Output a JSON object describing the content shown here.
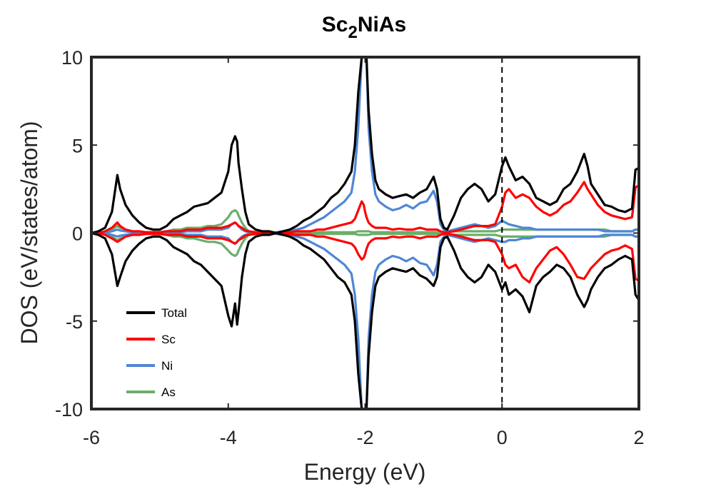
{
  "chart_data": {
    "type": "line",
    "title_main": "Sc",
    "title_sub": "2",
    "title_rest": "NiAs",
    "xlabel": "Energy (eV)",
    "ylabel": "DOS (eV/states/atom)",
    "xlim": [
      -6,
      2
    ],
    "ylim": [
      -10,
      10
    ],
    "xticks": [
      -6,
      -4,
      -2,
      0,
      2
    ],
    "xtick_labels": [
      "-6",
      "-4",
      "-2",
      "0",
      "2"
    ],
    "yticks": [
      -10,
      -5,
      0,
      5,
      10
    ],
    "ytick_labels": [
      "-10",
      "-5",
      "0",
      "5",
      "10"
    ],
    "fermi_level": 0,
    "legend_position": "lower-left",
    "grid": false,
    "x": [
      -6.0,
      -5.9,
      -5.8,
      -5.7,
      -5.62,
      -5.58,
      -5.5,
      -5.4,
      -5.3,
      -5.2,
      -5.1,
      -5.0,
      -4.9,
      -4.8,
      -4.7,
      -4.6,
      -4.5,
      -4.4,
      -4.3,
      -4.2,
      -4.1,
      -4.0,
      -3.95,
      -3.9,
      -3.87,
      -3.85,
      -3.8,
      -3.75,
      -3.7,
      -3.6,
      -3.5,
      -3.4,
      -3.3,
      -3.2,
      -3.1,
      -3.0,
      -2.9,
      -2.8,
      -2.7,
      -2.6,
      -2.5,
      -2.4,
      -2.3,
      -2.2,
      -2.15,
      -2.1,
      -2.05,
      -2.02,
      -2.0,
      -1.98,
      -1.95,
      -1.9,
      -1.85,
      -1.8,
      -1.7,
      -1.6,
      -1.5,
      -1.4,
      -1.3,
      -1.2,
      -1.1,
      -1.0,
      -0.95,
      -0.9,
      -0.85,
      -0.8,
      -0.7,
      -0.6,
      -0.5,
      -0.4,
      -0.3,
      -0.2,
      -0.1,
      0.0,
      0.05,
      0.1,
      0.2,
      0.3,
      0.4,
      0.5,
      0.6,
      0.7,
      0.8,
      0.9,
      1.0,
      1.1,
      1.2,
      1.25,
      1.3,
      1.4,
      1.5,
      1.6,
      1.7,
      1.8,
      1.9,
      1.95,
      2.0
    ],
    "series": [
      {
        "name": "Total",
        "color": "#000000",
        "up": [
          0.0,
          0.1,
          0.3,
          1.2,
          3.3,
          2.5,
          1.6,
          1.0,
          0.6,
          0.3,
          0.2,
          0.2,
          0.4,
          0.8,
          1.0,
          1.2,
          1.5,
          1.6,
          1.7,
          2.0,
          2.3,
          3.5,
          5.0,
          5.5,
          5.2,
          4.0,
          2.5,
          1.2,
          0.5,
          0.2,
          0.1,
          0.1,
          0.0,
          0.1,
          0.2,
          0.4,
          0.7,
          0.9,
          1.2,
          1.5,
          2.0,
          2.3,
          2.8,
          3.5,
          5.0,
          8.0,
          10.0,
          10.0,
          10.0,
          10.0,
          7.0,
          4.5,
          3.0,
          2.5,
          2.2,
          2.0,
          2.1,
          2.2,
          2.0,
          2.3,
          2.5,
          3.2,
          2.5,
          0.8,
          0.3,
          0.2,
          1.0,
          2.0,
          2.5,
          2.8,
          2.5,
          1.8,
          2.2,
          3.8,
          4.3,
          3.8,
          3.0,
          3.2,
          2.8,
          2.0,
          1.8,
          1.6,
          1.8,
          2.5,
          2.8,
          3.5,
          4.5,
          3.8,
          2.8,
          2.2,
          1.6,
          1.5,
          1.3,
          1.2,
          1.4,
          3.6,
          3.7
        ],
        "down": [
          0.0,
          -0.1,
          -0.3,
          -1.2,
          -3.0,
          -2.5,
          -1.6,
          -1.0,
          -0.6,
          -0.3,
          -0.2,
          -0.2,
          -0.4,
          -0.8,
          -1.0,
          -1.2,
          -1.6,
          -1.8,
          -2.2,
          -2.6,
          -3.0,
          -4.7,
          -5.3,
          -4.0,
          -5.2,
          -4.5,
          -2.5,
          -1.2,
          -0.5,
          -0.2,
          -0.1,
          -0.1,
          0.0,
          -0.1,
          -0.2,
          -0.4,
          -0.7,
          -0.9,
          -1.2,
          -1.5,
          -2.0,
          -2.5,
          -2.8,
          -3.5,
          -5.0,
          -8.0,
          -10.0,
          -10.0,
          -10.0,
          -10.0,
          -7.0,
          -4.5,
          -3.0,
          -2.5,
          -2.2,
          -2.0,
          -2.1,
          -2.2,
          -2.0,
          -2.4,
          -2.6,
          -3.0,
          -2.5,
          -0.8,
          -0.3,
          -0.2,
          -1.0,
          -2.0,
          -2.5,
          -2.8,
          -2.5,
          -1.8,
          -2.2,
          -3.2,
          -2.8,
          -3.5,
          -3.2,
          -3.6,
          -4.5,
          -3.0,
          -2.5,
          -2.2,
          -1.8,
          -2.0,
          -2.5,
          -3.5,
          -4.2,
          -3.8,
          -3.2,
          -2.5,
          -2.0,
          -1.8,
          -1.5,
          -1.3,
          -1.5,
          -3.5,
          -3.8
        ]
      },
      {
        "name": "Sc",
        "color": "#ff0000",
        "up": [
          0.0,
          0.0,
          0.1,
          0.3,
          0.6,
          0.4,
          0.2,
          0.1,
          0.1,
          0.05,
          0.05,
          0.05,
          0.1,
          0.1,
          0.1,
          0.2,
          0.2,
          0.2,
          0.3,
          0.3,
          0.3,
          0.4,
          0.5,
          0.6,
          0.5,
          0.4,
          0.3,
          0.15,
          0.1,
          0.05,
          0.0,
          0.0,
          0.0,
          0.05,
          0.05,
          0.1,
          0.1,
          0.1,
          0.2,
          0.2,
          0.3,
          0.4,
          0.5,
          0.6,
          0.8,
          1.3,
          1.8,
          1.6,
          1.2,
          0.9,
          0.6,
          0.4,
          0.3,
          0.3,
          0.3,
          0.2,
          0.25,
          0.2,
          0.2,
          0.3,
          0.2,
          0.2,
          0.2,
          0.1,
          0.05,
          0.05,
          0.1,
          0.2,
          0.3,
          0.4,
          0.4,
          0.4,
          0.5,
          1.5,
          2.3,
          2.5,
          2.0,
          2.2,
          2.0,
          1.5,
          1.2,
          1.0,
          1.2,
          1.6,
          1.8,
          2.3,
          2.9,
          2.5,
          2.2,
          1.6,
          1.2,
          1.0,
          0.9,
          0.8,
          0.9,
          2.6,
          2.7
        ],
        "down": [
          0.0,
          0.0,
          -0.1,
          -0.3,
          -0.5,
          -0.4,
          -0.2,
          -0.1,
          -0.1,
          -0.05,
          -0.05,
          -0.05,
          -0.1,
          -0.1,
          -0.1,
          -0.2,
          -0.2,
          -0.2,
          -0.3,
          -0.3,
          -0.3,
          -0.4,
          -0.5,
          -0.6,
          -0.5,
          -0.4,
          -0.3,
          -0.15,
          -0.1,
          -0.05,
          0.0,
          0.0,
          0.0,
          -0.05,
          -0.05,
          -0.1,
          -0.1,
          -0.1,
          -0.2,
          -0.2,
          -0.3,
          -0.4,
          -0.5,
          -0.6,
          -0.8,
          -1.2,
          -1.5,
          -1.4,
          -1.2,
          -0.9,
          -0.6,
          -0.4,
          -0.3,
          -0.3,
          -0.3,
          -0.2,
          -0.25,
          -0.2,
          -0.2,
          -0.3,
          -0.2,
          -0.2,
          -0.2,
          -0.1,
          -0.05,
          -0.05,
          -0.1,
          -0.2,
          -0.3,
          -0.4,
          -0.4,
          -0.4,
          -0.5,
          -1.2,
          -1.8,
          -2.0,
          -1.8,
          -2.5,
          -2.8,
          -2.0,
          -1.5,
          -1.0,
          -0.8,
          -1.2,
          -1.8,
          -2.5,
          -2.6,
          -2.3,
          -2.0,
          -1.6,
          -1.2,
          -1.0,
          -0.9,
          -0.7,
          -0.9,
          -2.6,
          -2.7
        ]
      },
      {
        "name": "Ni",
        "color": "#4f86d6",
        "up": [
          0.0,
          0.0,
          0.0,
          0.1,
          0.2,
          0.15,
          0.1,
          0.05,
          0.05,
          0.05,
          0.05,
          0.05,
          0.05,
          0.05,
          0.05,
          0.1,
          0.1,
          0.1,
          0.2,
          0.2,
          0.2,
          0.3,
          0.5,
          0.6,
          0.5,
          0.4,
          0.2,
          0.1,
          0.05,
          0.0,
          0.0,
          0.0,
          0.05,
          0.1,
          0.15,
          0.2,
          0.3,
          0.5,
          0.7,
          0.9,
          1.2,
          1.5,
          1.8,
          2.3,
          3.5,
          6.0,
          10.0,
          10.0,
          10.0,
          10.0,
          6.0,
          3.5,
          2.2,
          1.8,
          1.5,
          1.3,
          1.4,
          1.6,
          1.4,
          1.7,
          1.8,
          2.4,
          1.8,
          0.5,
          0.2,
          0.1,
          0.2,
          0.3,
          0.4,
          0.5,
          0.4,
          0.3,
          0.4,
          0.7,
          0.6,
          0.5,
          0.4,
          0.3,
          0.3,
          0.2,
          0.2,
          0.2,
          0.2,
          0.2,
          0.2,
          0.2,
          0.2,
          0.2,
          0.2,
          0.2,
          0.1,
          0.1,
          0.1,
          0.1,
          0.1,
          0.2,
          0.2
        ],
        "down": [
          0.0,
          0.0,
          0.0,
          -0.1,
          -0.2,
          -0.15,
          -0.1,
          -0.05,
          -0.05,
          -0.05,
          -0.05,
          -0.05,
          -0.05,
          -0.05,
          -0.05,
          -0.1,
          -0.1,
          -0.1,
          -0.2,
          -0.2,
          -0.2,
          -0.3,
          -0.5,
          -0.6,
          -0.5,
          -0.4,
          -0.2,
          -0.1,
          -0.05,
          0.0,
          0.0,
          0.0,
          -0.05,
          -0.1,
          -0.15,
          -0.2,
          -0.3,
          -0.5,
          -0.7,
          -0.9,
          -1.2,
          -1.5,
          -1.8,
          -2.3,
          -3.5,
          -6.0,
          -10.0,
          -10.0,
          -10.0,
          -10.0,
          -6.0,
          -3.5,
          -2.2,
          -1.8,
          -1.5,
          -1.3,
          -1.4,
          -1.6,
          -1.4,
          -1.7,
          -1.8,
          -2.4,
          -1.8,
          -0.5,
          -0.2,
          -0.1,
          -0.2,
          -0.3,
          -0.4,
          -0.5,
          -0.4,
          -0.3,
          -0.4,
          -0.5,
          -0.5,
          -0.4,
          -0.4,
          -0.3,
          -0.3,
          -0.2,
          -0.2,
          -0.2,
          -0.2,
          -0.2,
          -0.2,
          -0.2,
          -0.2,
          -0.2,
          -0.2,
          -0.2,
          -0.1,
          -0.1,
          -0.1,
          -0.1,
          -0.1,
          -0.2,
          -0.2
        ]
      },
      {
        "name": "As",
        "color": "#6bae6b",
        "up": [
          0.0,
          0.0,
          0.05,
          0.2,
          0.4,
          0.3,
          0.2,
          0.1,
          0.05,
          0.05,
          0.05,
          0.05,
          0.1,
          0.2,
          0.2,
          0.3,
          0.3,
          0.3,
          0.4,
          0.4,
          0.5,
          0.9,
          1.2,
          1.3,
          1.2,
          1.0,
          0.6,
          0.3,
          0.1,
          0.05,
          0.0,
          0.0,
          0.0,
          0.0,
          0.0,
          0.05,
          0.05,
          0.05,
          0.05,
          0.05,
          0.05,
          0.05,
          0.05,
          0.05,
          0.05,
          0.1,
          0.1,
          0.1,
          0.1,
          0.1,
          0.1,
          0.05,
          0.05,
          0.05,
          0.05,
          0.05,
          0.05,
          0.05,
          0.05,
          0.05,
          0.05,
          0.05,
          0.05,
          0.05,
          0.05,
          0.05,
          0.1,
          0.1,
          0.1,
          0.1,
          0.1,
          0.1,
          0.1,
          0.2,
          0.2,
          0.2,
          0.2,
          0.2,
          0.2,
          0.2,
          0.2,
          0.2,
          0.2,
          0.2,
          0.2,
          0.2,
          0.2,
          0.2,
          0.2,
          0.2,
          0.2,
          0.1,
          0.1,
          0.1,
          0.1,
          0.2,
          0.2
        ],
        "down": [
          0.0,
          0.0,
          -0.05,
          -0.2,
          -0.4,
          -0.3,
          -0.2,
          -0.1,
          -0.05,
          -0.05,
          -0.05,
          -0.05,
          -0.1,
          -0.2,
          -0.2,
          -0.3,
          -0.3,
          -0.4,
          -0.5,
          -0.5,
          -0.6,
          -1.0,
          -1.2,
          -1.3,
          -1.2,
          -1.0,
          -0.6,
          -0.3,
          -0.1,
          -0.05,
          0.0,
          0.0,
          0.0,
          0.0,
          0.0,
          -0.05,
          -0.05,
          -0.05,
          -0.05,
          -0.05,
          -0.05,
          -0.05,
          -0.05,
          -0.05,
          -0.05,
          -0.1,
          -0.1,
          -0.1,
          -0.1,
          -0.1,
          -0.1,
          -0.05,
          -0.05,
          -0.05,
          -0.05,
          -0.05,
          -0.05,
          -0.05,
          -0.05,
          -0.05,
          -0.05,
          -0.05,
          -0.05,
          -0.05,
          -0.05,
          -0.05,
          -0.1,
          -0.1,
          -0.1,
          -0.1,
          -0.1,
          -0.1,
          -0.1,
          -0.2,
          -0.2,
          -0.2,
          -0.2,
          -0.2,
          -0.2,
          -0.2,
          -0.2,
          -0.2,
          -0.2,
          -0.2,
          -0.2,
          -0.2,
          -0.2,
          -0.2,
          -0.2,
          -0.2,
          -0.2,
          -0.1,
          -0.1,
          -0.1,
          -0.1,
          -0.2,
          -0.2
        ]
      }
    ]
  }
}
